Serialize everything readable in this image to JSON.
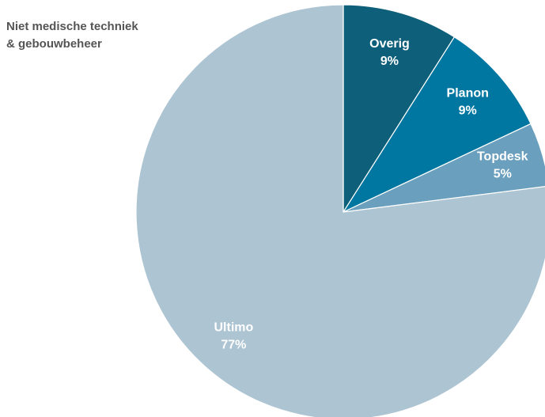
{
  "chart_data": {
    "type": "pie",
    "title": [
      "Niet medische techniek",
      "& gebouwbeheer"
    ],
    "categories": [
      "Overig",
      "Planon",
      "Topdesk",
      "Ultimo"
    ],
    "values": [
      9,
      9,
      5,
      77
    ],
    "value_labels": [
      "9%",
      "9%",
      "5%",
      "77%"
    ],
    "colors": [
      "#0e5f7a",
      "#0077a0",
      "#6a9fbd",
      "#adc4d2"
    ]
  }
}
